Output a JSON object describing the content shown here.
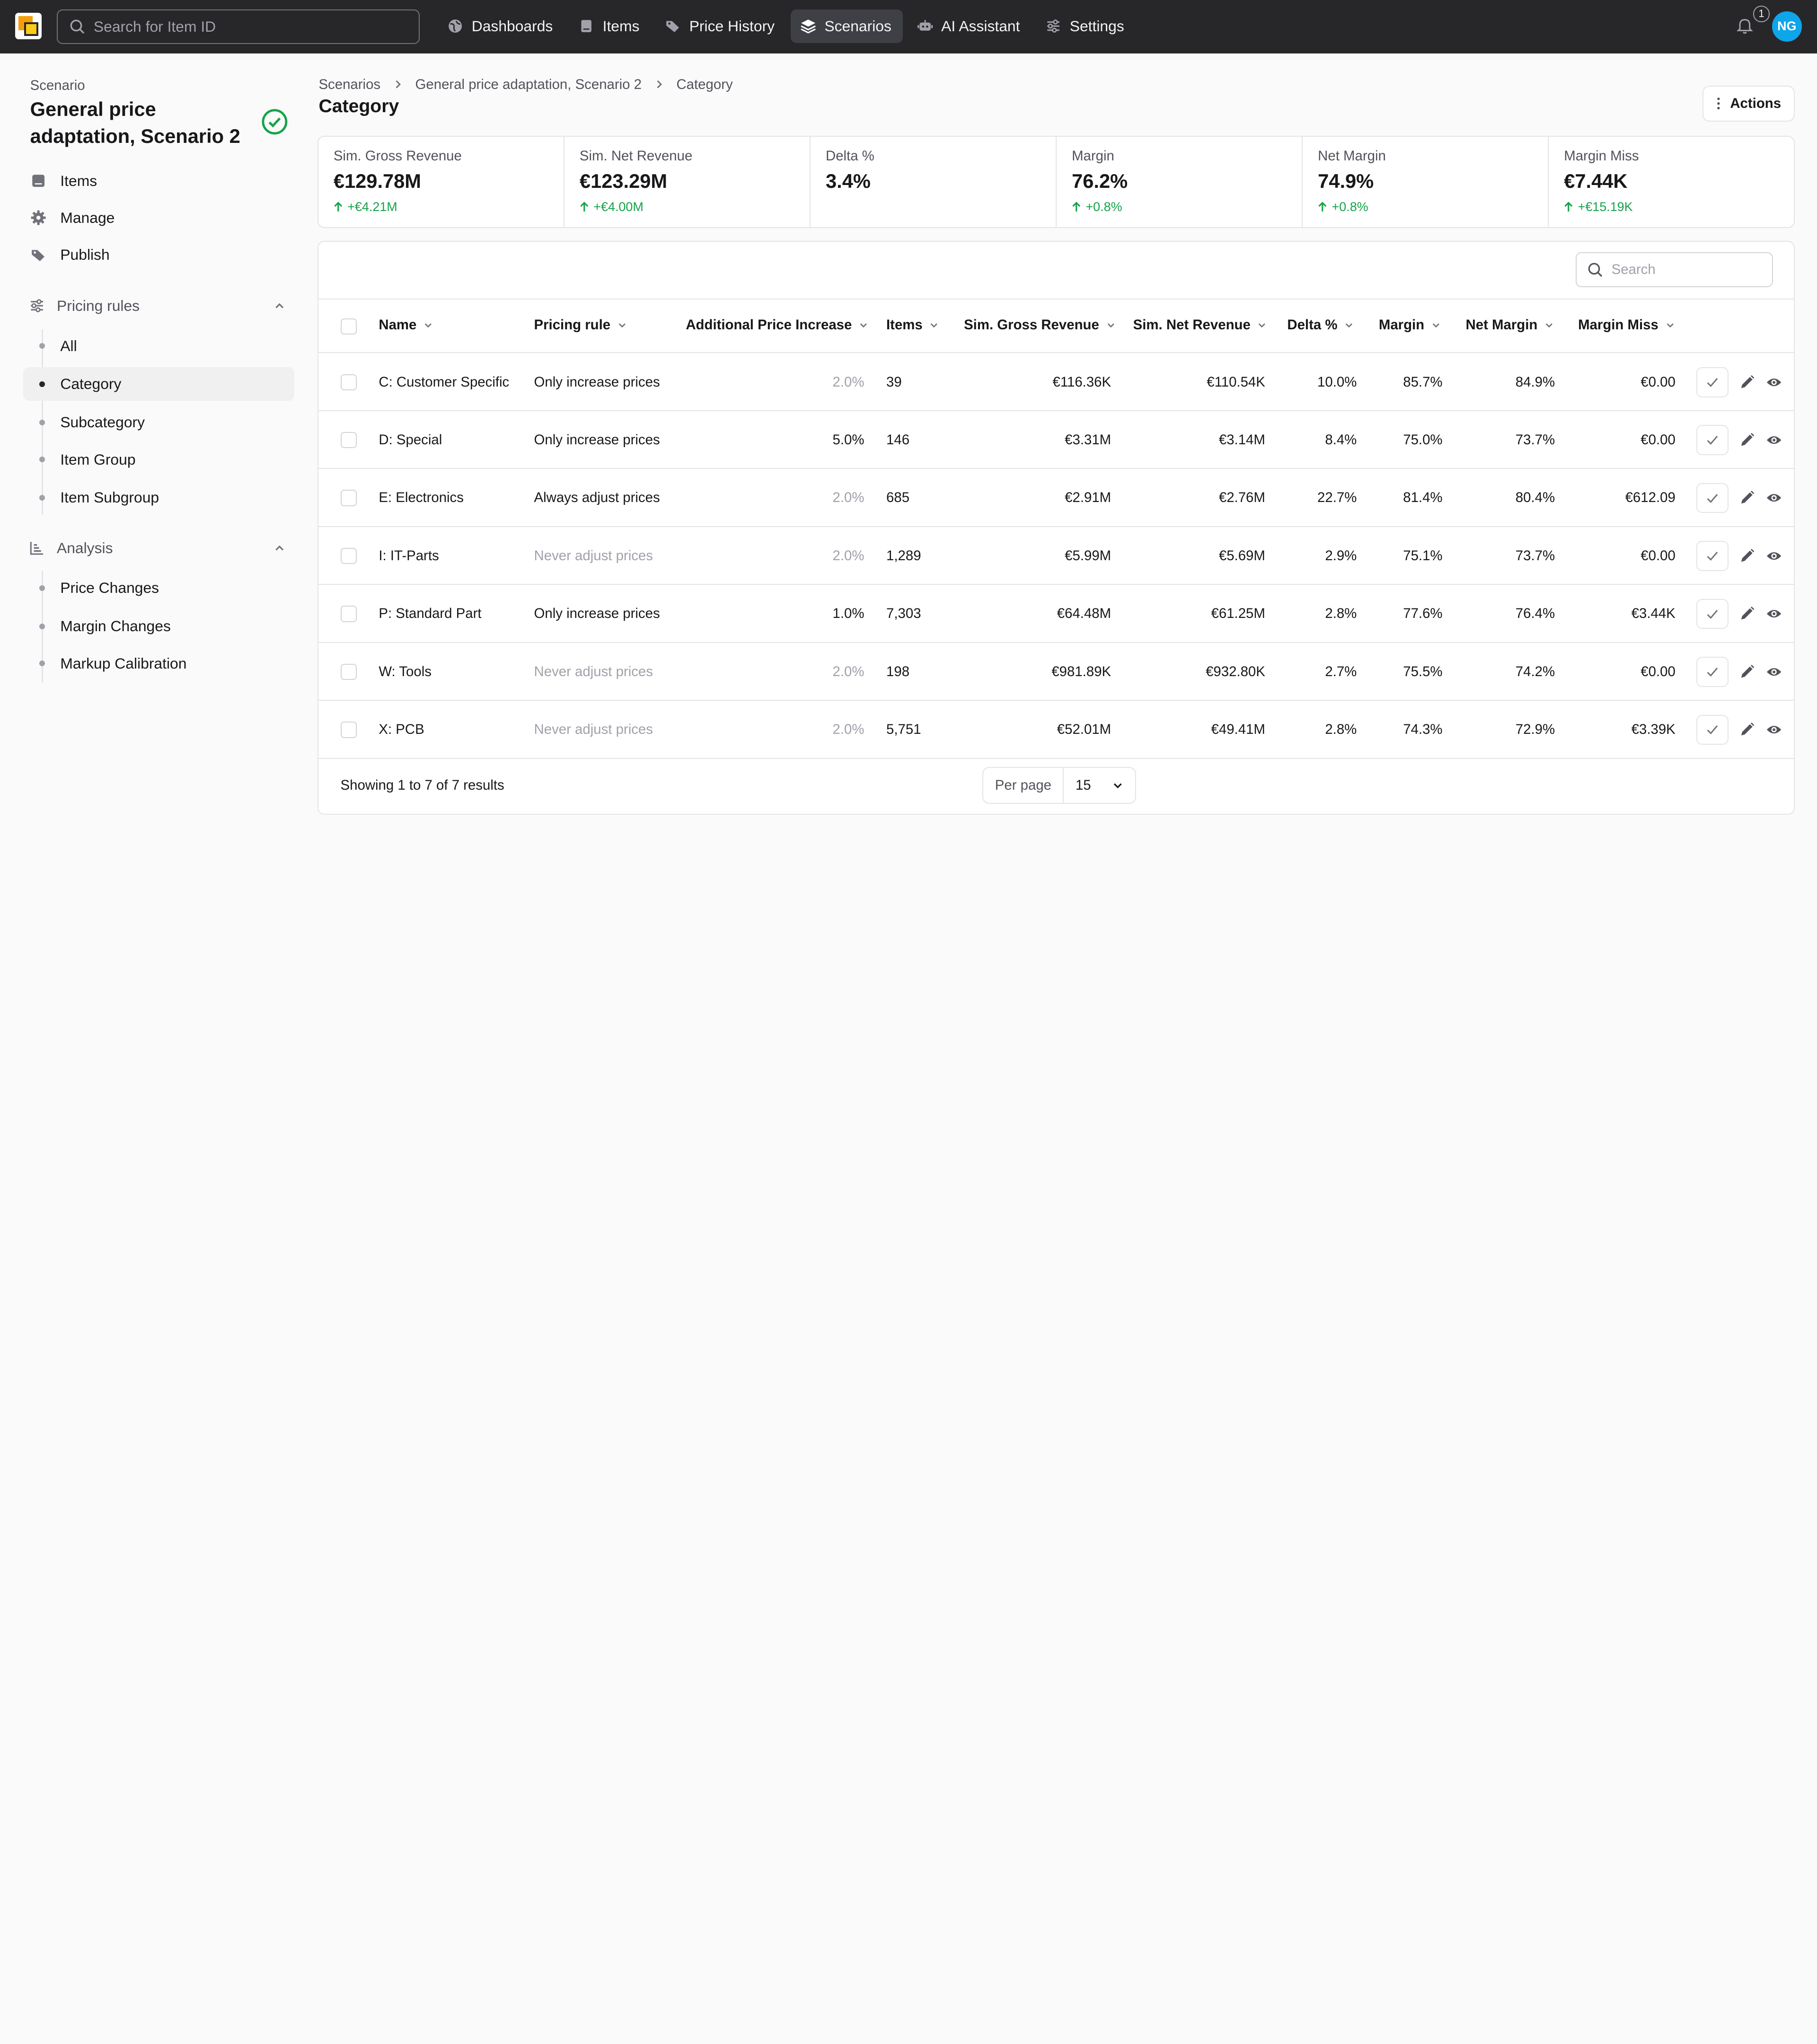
{
  "topbar": {
    "search_placeholder": "Search for Item ID",
    "nav": [
      {
        "label": "Dashboards",
        "icon": "globe-icon"
      },
      {
        "label": "Items",
        "icon": "book-icon"
      },
      {
        "label": "Price History",
        "icon": "tags-icon"
      },
      {
        "label": "Scenarios",
        "icon": "layers-icon",
        "active": true
      },
      {
        "label": "AI Assistant",
        "icon": "robot-icon"
      },
      {
        "label": "Settings",
        "icon": "sliders-icon"
      }
    ],
    "notification_count": "1",
    "avatar_initials": "NG"
  },
  "sidebar": {
    "label": "Scenario",
    "title": "General price adaptation, Scenario 2",
    "items": [
      {
        "label": "Items",
        "icon": "book-icon"
      },
      {
        "label": "Manage",
        "icon": "gear-icon"
      },
      {
        "label": "Publish",
        "icon": "tags-icon"
      }
    ],
    "pricing_rules": {
      "label": "Pricing rules",
      "items": [
        "All",
        "Category",
        "Subcategory",
        "Item Group",
        "Item Subgroup"
      ],
      "active": "Category"
    },
    "analysis": {
      "label": "Analysis",
      "items": [
        "Price Changes",
        "Margin Changes",
        "Markup Calibration"
      ]
    }
  },
  "breadcrumb": [
    "Scenarios",
    "General price adaptation, Scenario 2",
    "Category"
  ],
  "page_title": "Category",
  "actions_label": "Actions",
  "stats": [
    {
      "label": "Sim. Gross Revenue",
      "value": "€129.78M",
      "delta": "+€4.21M"
    },
    {
      "label": "Sim. Net Revenue",
      "value": "€123.29M",
      "delta": "+€4.00M"
    },
    {
      "label": "Delta %",
      "value": "3.4%",
      "delta": ""
    },
    {
      "label": "Margin",
      "value": "76.2%",
      "delta": "+0.8%"
    },
    {
      "label": "Net Margin",
      "value": "74.9%",
      "delta": "+0.8%"
    },
    {
      "label": "Margin Miss",
      "value": "€7.44K",
      "delta": "+€15.19K"
    }
  ],
  "table": {
    "search_placeholder": "Search",
    "columns": [
      "Name",
      "Pricing rule",
      "Additional Price Increase",
      "Items",
      "Sim. Gross Revenue",
      "Sim. Net Revenue",
      "Delta %",
      "Margin",
      "Net Margin",
      "Margin Miss"
    ],
    "rows": [
      {
        "name": "C: Customer Specific",
        "rule": "Only increase prices",
        "rule_muted": false,
        "api": "2.0%",
        "api_muted": true,
        "items": "39",
        "gross": "€116.36K",
        "net": "€110.54K",
        "delta": "10.0%",
        "margin": "85.7%",
        "net_margin": "84.9%",
        "miss": "€0.00"
      },
      {
        "name": "D: Special",
        "rule": "Only increase prices",
        "rule_muted": false,
        "api": "5.0%",
        "api_muted": false,
        "items": "146",
        "gross": "€3.31M",
        "net": "€3.14M",
        "delta": "8.4%",
        "margin": "75.0%",
        "net_margin": "73.7%",
        "miss": "€0.00"
      },
      {
        "name": "E: Electronics",
        "rule": "Always adjust prices",
        "rule_muted": false,
        "api": "2.0%",
        "api_muted": true,
        "items": "685",
        "gross": "€2.91M",
        "net": "€2.76M",
        "delta": "22.7%",
        "margin": "81.4%",
        "net_margin": "80.4%",
        "miss": "€612.09"
      },
      {
        "name": "I: IT-Parts",
        "rule": "Never adjust prices",
        "rule_muted": true,
        "api": "2.0%",
        "api_muted": true,
        "items": "1,289",
        "gross": "€5.99M",
        "net": "€5.69M",
        "delta": "2.9%",
        "margin": "75.1%",
        "net_margin": "73.7%",
        "miss": "€0.00"
      },
      {
        "name": "P: Standard Part",
        "rule": "Only increase prices",
        "rule_muted": false,
        "api": "1.0%",
        "api_muted": false,
        "items": "7,303",
        "gross": "€64.48M",
        "net": "€61.25M",
        "delta": "2.8%",
        "margin": "77.6%",
        "net_margin": "76.4%",
        "miss": "€3.44K"
      },
      {
        "name": "W: Tools",
        "rule": "Never adjust prices",
        "rule_muted": true,
        "api": "2.0%",
        "api_muted": true,
        "items": "198",
        "gross": "€981.89K",
        "net": "€932.80K",
        "delta": "2.7%",
        "margin": "75.5%",
        "net_margin": "74.2%",
        "miss": "€0.00"
      },
      {
        "name": "X: PCB",
        "rule": "Never adjust prices",
        "rule_muted": true,
        "api": "2.0%",
        "api_muted": true,
        "items": "5,751",
        "gross": "€52.01M",
        "net": "€49.41M",
        "delta": "2.8%",
        "margin": "74.3%",
        "net_margin": "72.9%",
        "miss": "€3.39K"
      }
    ],
    "footer_text": "Showing 1 to 7 of 7 results",
    "per_page_label": "Per page",
    "per_page_value": "15"
  },
  "colors": {
    "topbar": "#27272a",
    "positive": "#16a34a",
    "success": "#16a34a",
    "avatar": "#0ea5e9"
  }
}
